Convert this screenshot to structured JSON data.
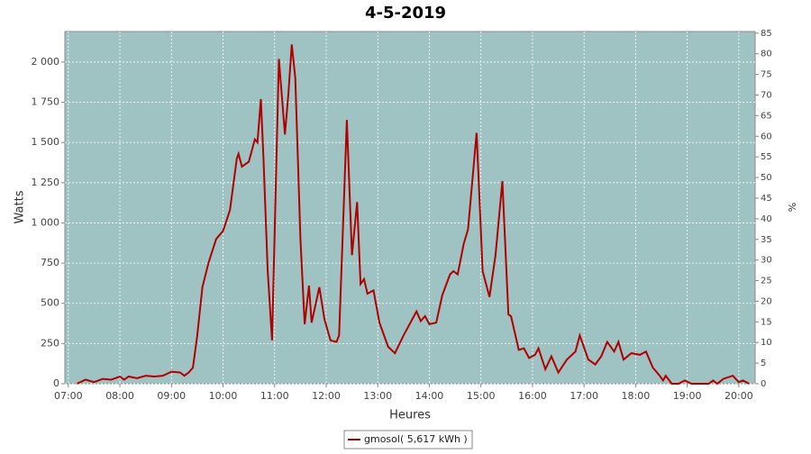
{
  "chart_data": {
    "type": "line",
    "title": "4-5-2019",
    "xlabel": "Heures",
    "ylabel": "Watts",
    "y2label": "%",
    "x": [
      "07:10",
      "07:20",
      "07:30",
      "07:40",
      "07:50",
      "08:00",
      "08:05",
      "08:10",
      "08:20",
      "08:30",
      "08:40",
      "08:50",
      "09:00",
      "09:10",
      "09:15",
      "09:20",
      "09:25",
      "09:30",
      "09:36",
      "09:43",
      "09:52",
      "10:00",
      "10:08",
      "10:16",
      "10:18",
      "10:22",
      "10:30",
      "10:37",
      "10:40",
      "10:44",
      "10:47",
      "10:52",
      "10:57",
      "11:05",
      "11:12",
      "11:16",
      "11:20",
      "11:24",
      "11:30",
      "11:35",
      "11:40",
      "11:43",
      "11:52",
      "11:58",
      "12:05",
      "12:12",
      "12:15",
      "12:24",
      "12:30",
      "12:36",
      "12:40",
      "12:44",
      "12:48",
      "12:55",
      "13:02",
      "13:12",
      "13:20",
      "13:30",
      "13:40",
      "13:45",
      "13:50",
      "13:55",
      "14:00",
      "14:08",
      "14:15",
      "14:24",
      "14:28",
      "14:33",
      "14:40",
      "14:45",
      "14:55",
      "15:02",
      "15:10",
      "15:17",
      "15:25",
      "15:32",
      "15:35",
      "15:44",
      "15:50",
      "15:56",
      "16:03",
      "16:07",
      "16:15",
      "16:22",
      "16:30",
      "16:40",
      "16:50",
      "16:55",
      "17:05",
      "17:13",
      "17:20",
      "17:27",
      "17:35",
      "17:40",
      "17:46",
      "17:55",
      "18:05",
      "18:12",
      "18:20",
      "18:28",
      "18:32",
      "18:35",
      "18:42",
      "18:50",
      "18:57",
      "19:05",
      "19:25",
      "19:30",
      "19:35",
      "19:42",
      "19:53",
      "20:00",
      "20:05",
      "20:12"
    ],
    "series": [
      {
        "name": "gmosol( 5,617 kWh )",
        "color": "#b00000",
        "values": [
          0,
          25,
          10,
          30,
          25,
          45,
          25,
          45,
          35,
          50,
          45,
          50,
          75,
          70,
          50,
          70,
          100,
          300,
          600,
          750,
          900,
          950,
          1080,
          1400,
          1430,
          1350,
          1380,
          1520,
          1500,
          1770,
          1400,
          700,
          270,
          2020,
          1550,
          1800,
          2110,
          1900,
          900,
          370,
          610,
          380,
          600,
          400,
          270,
          260,
          300,
          1640,
          800,
          1130,
          620,
          650,
          560,
          580,
          380,
          230,
          190,
          300,
          400,
          450,
          390,
          420,
          370,
          380,
          550,
          680,
          700,
          680,
          870,
          960,
          1560,
          700,
          540,
          800,
          1260,
          430,
          420,
          210,
          220,
          160,
          180,
          220,
          90,
          170,
          70,
          150,
          200,
          300,
          150,
          120,
          170,
          260,
          200,
          260,
          150,
          190,
          180,
          200,
          100,
          50,
          20,
          50,
          0,
          0,
          20,
          0,
          0,
          20,
          0,
          30,
          50,
          10,
          20,
          0
        ]
      }
    ],
    "xlim": [
      "06:56",
      "20:19"
    ],
    "xticks": [
      "07:00",
      "08:00",
      "09:00",
      "10:00",
      "11:00",
      "12:00",
      "13:00",
      "14:00",
      "15:00",
      "16:00",
      "17:00",
      "18:00",
      "19:00",
      "20:00"
    ],
    "ylim": [
      0,
      2190
    ],
    "yticks": [
      0,
      250,
      500,
      750,
      {
        "value": 1000,
        "label": "1 000"
      },
      {
        "value": 1250,
        "label": "1 250"
      },
      {
        "value": 1500,
        "label": "1 500"
      },
      {
        "value": 1750,
        "label": "1 750"
      },
      {
        "value": 2000,
        "label": "2 000"
      }
    ],
    "y2lim": [
      0,
      85.4
    ],
    "y2ticks": [
      0,
      5,
      10,
      15,
      20,
      25,
      30,
      35,
      40,
      45,
      50,
      55,
      60,
      65,
      70,
      75,
      80,
      85
    ],
    "grid": true,
    "plot_background": "#9fc3c3",
    "legend": "bottom"
  }
}
